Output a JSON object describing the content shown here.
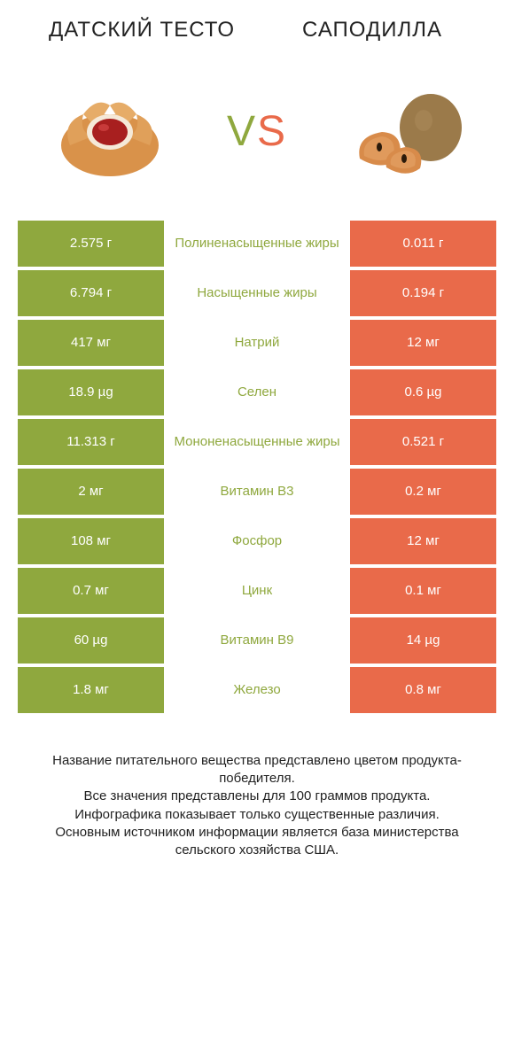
{
  "colors": {
    "green": "#8fa83e",
    "orange": "#e96a4a",
    "background": "#ffffff",
    "text": "#222222"
  },
  "header": {
    "left_title": "ДАТСКИЙ ТЕСТО",
    "right_title": "САПОДИЛЛА",
    "vs_v": "V",
    "vs_s": "S"
  },
  "rows": [
    {
      "left": "2.575 г",
      "mid": "Полиненасыщенные жиры",
      "right": "0.011 г",
      "winner": "left"
    },
    {
      "left": "6.794 г",
      "mid": "Насыщенные жиры",
      "right": "0.194 г",
      "winner": "left"
    },
    {
      "left": "417 мг",
      "mid": "Натрий",
      "right": "12 мг",
      "winner": "left"
    },
    {
      "left": "18.9 µg",
      "mid": "Селен",
      "right": "0.6 µg",
      "winner": "left"
    },
    {
      "left": "11.313 г",
      "mid": "Мононенасыщенные жиры",
      "right": "0.521 г",
      "winner": "left"
    },
    {
      "left": "2 мг",
      "mid": "Витамин B3",
      "right": "0.2 мг",
      "winner": "left"
    },
    {
      "left": "108 мг",
      "mid": "Фосфор",
      "right": "12 мг",
      "winner": "left"
    },
    {
      "left": "0.7 мг",
      "mid": "Цинк",
      "right": "0.1 мг",
      "winner": "left"
    },
    {
      "left": "60 µg",
      "mid": "Витамин B9",
      "right": "14 µg",
      "winner": "left"
    },
    {
      "left": "1.8 мг",
      "mid": "Железо",
      "right": "0.8 мг",
      "winner": "left"
    }
  ],
  "footer": {
    "line1": "Название питательного вещества представлено цветом продукта-победителя.",
    "line2": "Все значения представлены для 100 граммов продукта.",
    "line3": "Инфографика показывает только существенные различия.",
    "line4": "Основным источником информации является база министерства сельского хозяйства США."
  }
}
